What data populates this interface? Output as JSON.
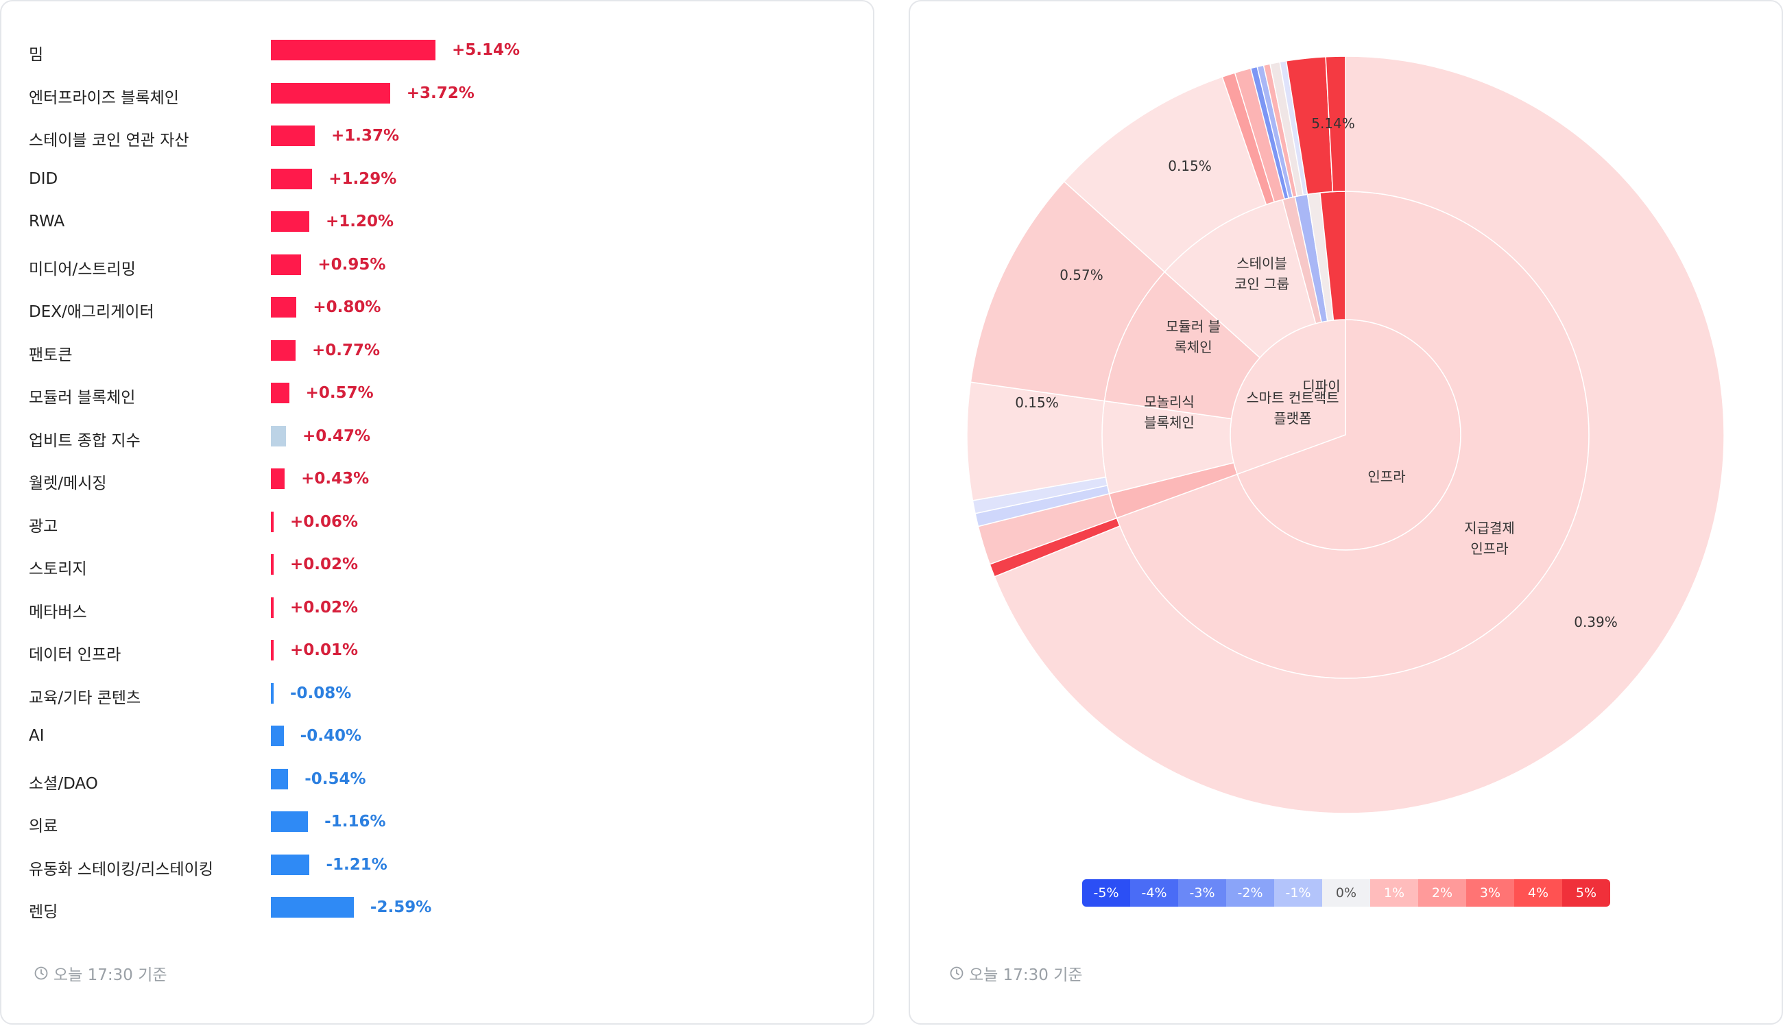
{
  "chart_data": [
    {
      "type": "bar",
      "orientation": "horizontal",
      "categories": [
        "밈",
        "엔터프라이즈 블록체인",
        "스테이블 코인 연관 자산",
        "DID",
        "RWA",
        "미디어/스트리밍",
        "DEX/애그리게이터",
        "팬토큰",
        "모듈러 블록체인",
        "업비트 종합 지수",
        "월렛/메시징",
        "광고",
        "스토리지",
        "메타버스",
        "데이터 인프라",
        "교육/기타 콘텐츠",
        "AI",
        "소셜/DAO",
        "의료",
        "유동화 스테이킹/리스테이킹",
        "렌딩"
      ],
      "values": [
        5.14,
        3.72,
        1.37,
        1.29,
        1.2,
        0.95,
        0.8,
        0.77,
        0.57,
        0.47,
        0.43,
        0.06,
        0.02,
        0.02,
        0.01,
        -0.08,
        -0.4,
        -0.54,
        -1.16,
        -1.21,
        -2.59
      ],
      "labels": [
        "+5.14%",
        "+3.72%",
        "+1.37%",
        "+1.29%",
        "+1.20%",
        "+0.95%",
        "+0.80%",
        "+0.77%",
        "+0.57%",
        "+0.47%",
        "+0.43%",
        "+0.06%",
        "+0.02%",
        "+0.02%",
        "+0.01%",
        "-0.08%",
        "-0.40%",
        "-0.54%",
        "-1.16%",
        "-1.21%",
        "-2.59%"
      ],
      "index_category": "업비트 종합 지수",
      "colors": {
        "positive": "#ff1a4b",
        "negative": "#2f8af5",
        "index": "#bcd3e6",
        "positive_text": "#d61f3b",
        "negative_text": "#2b7fe0"
      }
    },
    {
      "type": "sunburst",
      "inner": [
        {
          "label": "인프라",
          "value": 0.39
        },
        {
          "label": "디파이",
          "value": 0.15
        }
      ],
      "middle": [
        {
          "label": "지급결제\n인프라",
          "value": 0.39
        },
        {
          "label": "모놀리식\n블록체인",
          "value": 0.15
        },
        {
          "label": "모듈러 블\n록체인",
          "value": 0.57
        },
        {
          "label": "스테이블\n코인 그룹",
          "value": 0.15
        },
        {
          "label": "스마트 컨트랙트\n플랫폼",
          "value": 5.14
        }
      ],
      "outer_labels": [
        "0.39%",
        "0.15%",
        "0.57%",
        "0.15%",
        "5.14%"
      ],
      "legend": [
        "-5%",
        "-4%",
        "-3%",
        "-2%",
        "-1%",
        "0%",
        "1%",
        "2%",
        "3%",
        "4%",
        "5%"
      ],
      "legend_colors": [
        "#2b4ff5",
        "#4a6cf6",
        "#6a88f7",
        "#8aa4f9",
        "#b3c4fb",
        "#f0f1f4",
        "#ffbcbc",
        "#ff9a9a",
        "#ff7474",
        "#ff5252",
        "#f0303a"
      ]
    }
  ],
  "footer": {
    "left": "오늘 17:30 기준",
    "right": "오늘 17:30 기준"
  }
}
